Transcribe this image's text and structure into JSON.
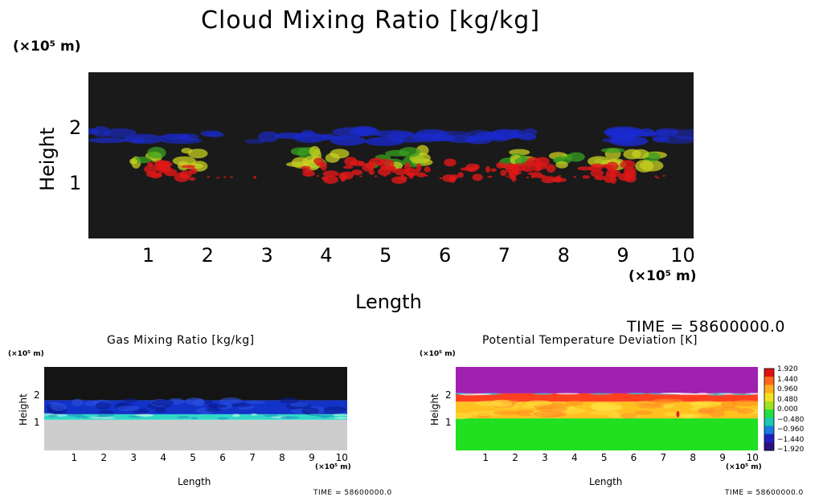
{
  "chart_data": [
    {
      "type": "heatmap",
      "title": "Cloud Mixing Ratio [kg/kg]",
      "y_unit": "(×10⁵ m)",
      "x_unit": "(×10⁵ m)",
      "xlabel": "Length",
      "ylabel": "Height",
      "x_ticks": [
        1,
        2,
        3,
        4,
        5,
        6,
        7,
        8,
        9,
        10
      ],
      "y_ticks": [
        1,
        2
      ],
      "xlim": [
        0,
        10.2
      ],
      "ylim": [
        0,
        3
      ],
      "time_label": "TIME = 58600000.0",
      "background_color": "#1a1a1a",
      "layers": [
        {
          "name": "upper cloud (blue)",
          "color": "#1a2ad0",
          "height_range": [
            1.75,
            1.95
          ]
        },
        {
          "name": "mid cloud (yellow-green)",
          "color": "#c8d020",
          "height_range": [
            1.3,
            1.6
          ]
        },
        {
          "name": "lower cloud (red)",
          "color": "#e01818",
          "height_range": [
            1.05,
            1.4
          ]
        }
      ]
    },
    {
      "type": "heatmap",
      "title": "Gas Mixing Ratio [kg/kg]",
      "y_unit": "(×10⁵ m)",
      "x_unit": "(×10⁵ m)",
      "xlabel": "Length",
      "ylabel": "Height",
      "x_ticks": [
        1,
        2,
        3,
        4,
        5,
        6,
        7,
        8,
        9,
        10
      ],
      "y_ticks": [
        1,
        2
      ],
      "xlim": [
        0,
        10.2
      ],
      "ylim": [
        0,
        3
      ],
      "time_label": "TIME = 58600000.0",
      "layers": [
        {
          "name": "upper (dark)",
          "color": "#141414",
          "height_range": [
            1.8,
            3.0
          ]
        },
        {
          "name": "blue band",
          "color": "#1232c8",
          "height_range": [
            1.3,
            1.8
          ]
        },
        {
          "name": "cyan band",
          "color": "#30d8c8",
          "height_range": [
            1.1,
            1.3
          ]
        },
        {
          "name": "lower (grey)",
          "color": "#cdcdcd",
          "height_range": [
            0,
            1.1
          ]
        }
      ]
    },
    {
      "type": "heatmap",
      "title": "Potential Temperature Deviation [K]",
      "y_unit": "(×10⁵ m)",
      "x_unit": "(×10⁵ m)",
      "xlabel": "Length",
      "ylabel": "Height",
      "x_ticks": [
        1,
        2,
        3,
        4,
        5,
        6,
        7,
        8,
        9,
        10
      ],
      "y_ticks": [
        1,
        2
      ],
      "xlim": [
        0,
        10.2
      ],
      "ylim": [
        0,
        3
      ],
      "time_label": "TIME = 58600000.0",
      "colorbar_levels": [
        "1.920",
        "1.440",
        "0.960",
        "0.480",
        "0.000",
        "−0.480",
        "−0.960",
        "−1.440",
        "−1.920"
      ],
      "colorbar_colors": [
        "#e01010",
        "#ff6a1a",
        "#ffae1a",
        "#f5e020",
        "#a0e020",
        "#20e040",
        "#18c8b0",
        "#1a7ae0",
        "#2020c0",
        "#2a1080"
      ],
      "layers": [
        {
          "name": "top (purple)",
          "color": "#a020b0",
          "height_range": [
            2.05,
            3.0
          ]
        },
        {
          "name": "red band",
          "color": "#ff4020",
          "height_range": [
            1.75,
            2.05
          ]
        },
        {
          "name": "orange/yellow band",
          "color": "#ffc020",
          "height_range": [
            1.15,
            1.75
          ]
        },
        {
          "name": "bottom (green)",
          "color": "#20e020",
          "height_range": [
            0,
            1.15
          ]
        }
      ]
    }
  ]
}
